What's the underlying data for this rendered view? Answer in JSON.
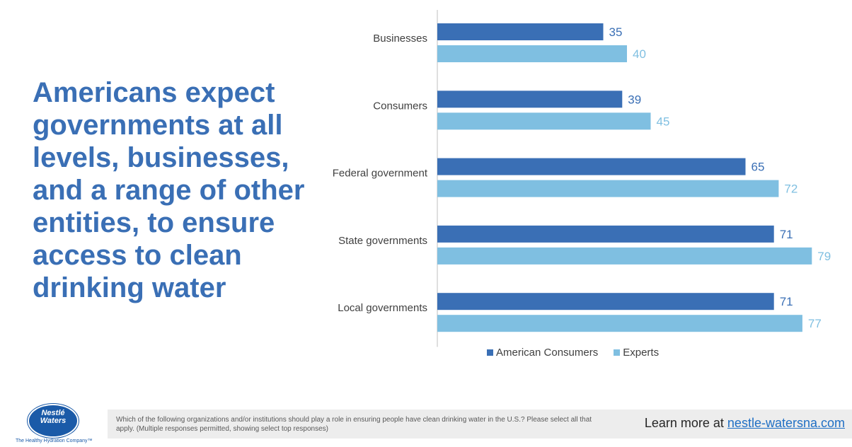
{
  "headline": "Americans expect governments at all levels, businesses, and a range of other entities, to ensure access to clean drinking water",
  "colors": {
    "consumers": "#3a6fb5",
    "experts": "#7fbfe1",
    "axis": "#bfbfbf"
  },
  "chart_data": {
    "type": "bar",
    "orientation": "horizontal",
    "categories": [
      "Businesses",
      "Consumers",
      "Federal government",
      "State governments",
      "Local governments"
    ],
    "series": [
      {
        "name": "American Consumers",
        "values": [
          35,
          39,
          65,
          71,
          71
        ]
      },
      {
        "name": "Experts",
        "values": [
          40,
          45,
          72,
          79,
          77
        ]
      }
    ],
    "xlim": [
      0,
      85
    ],
    "grid": false,
    "legend_position": "bottom"
  },
  "footer": {
    "question": "Which of the following organizations and/or institutions should play a role in ensuring people have clean drinking water in the U.S.? Please select all that apply. (Multiple responses permitted, showing select top responses)",
    "learn_more": "Learn more at",
    "link": "nestle-watersna.com"
  },
  "logo": {
    "line1": "Nestlé",
    "line2": "Waters",
    "tagline": "The Healthy Hydration Company™"
  }
}
